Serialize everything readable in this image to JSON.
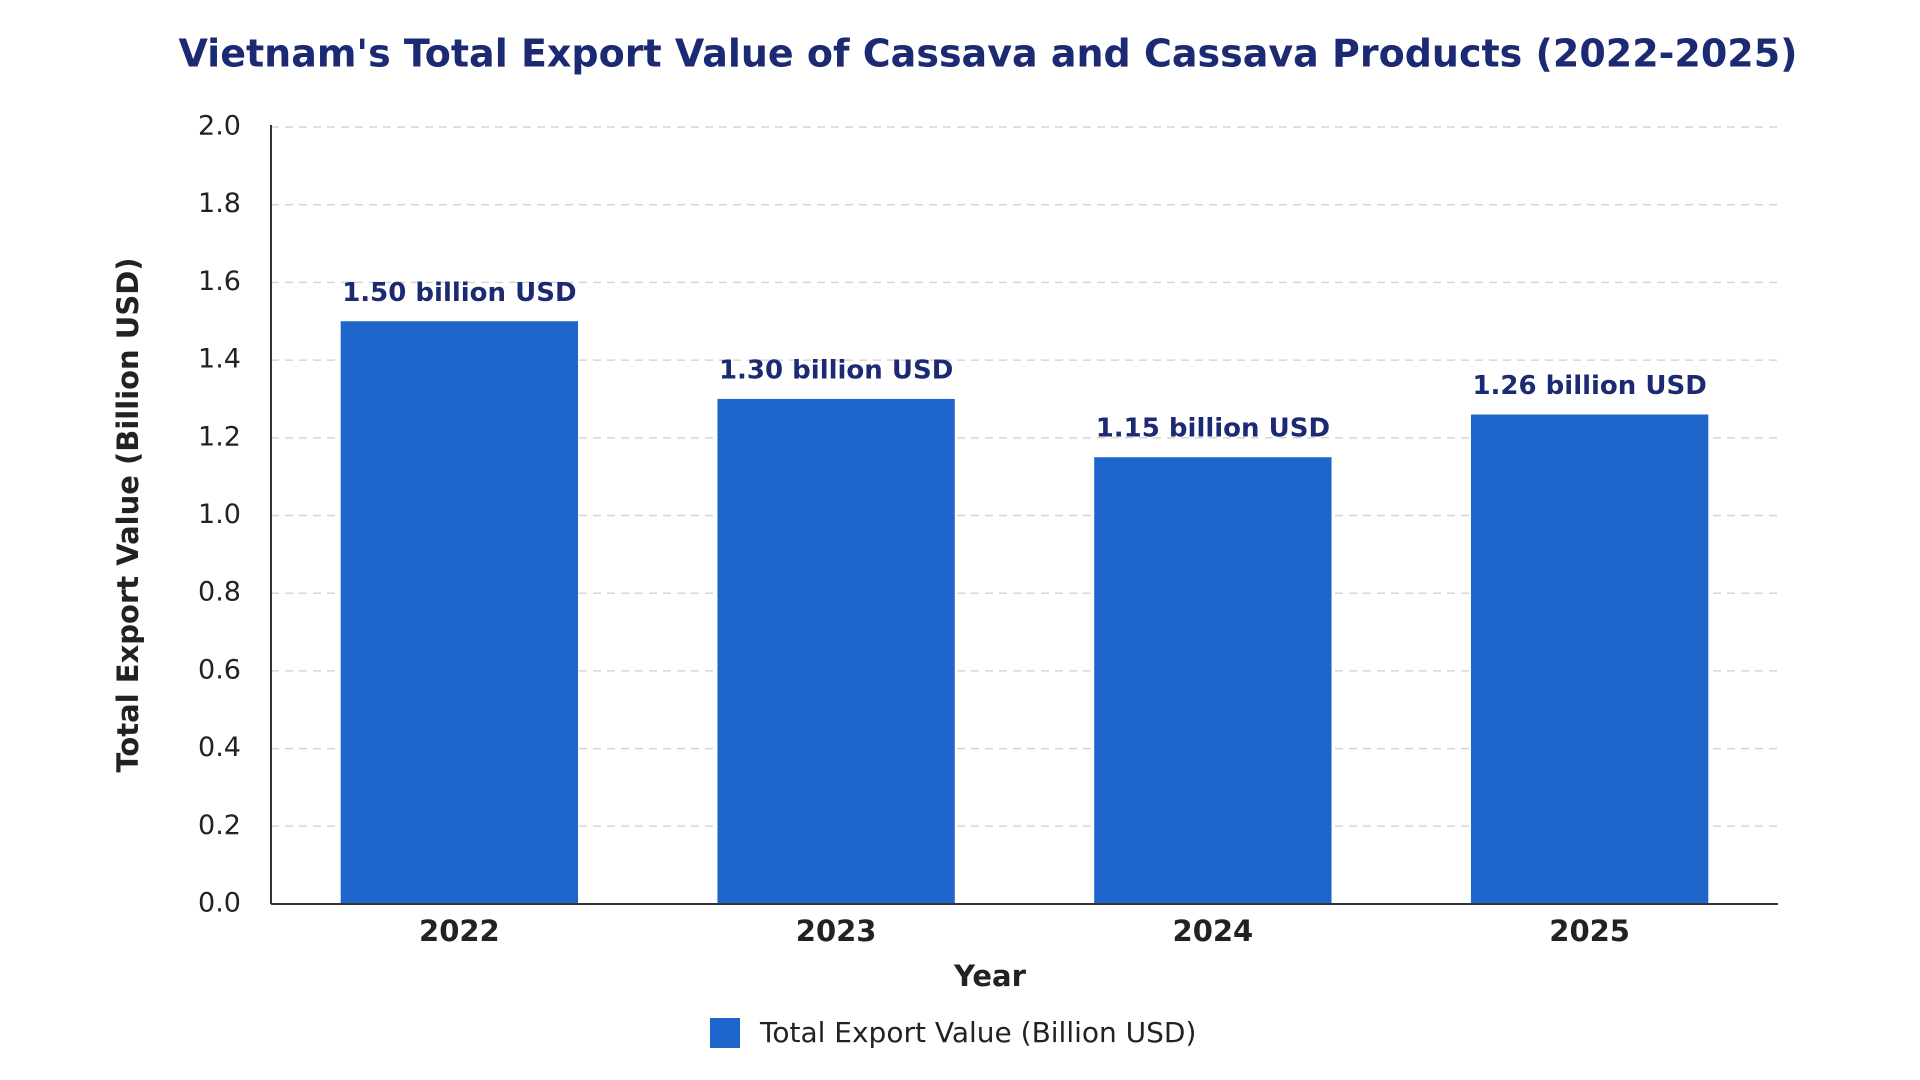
{
  "chart_data": {
    "type": "bar",
    "title": "Vietnam's Total Export Value of Cassava and Cassava Products (2022-2025)",
    "x_label": "Year",
    "y_label": "Total Export Value (Billion USD)",
    "categories": [
      "2022",
      "2023",
      "2024",
      "2025"
    ],
    "series": [
      {
        "name": "Total Export Value (Billion USD)",
        "color": "#1f66cc",
        "values": [
          1.5,
          1.3,
          1.15,
          1.26
        ],
        "value_labels": [
          "1.50 billion USD",
          "1.30 billion USD",
          "1.15 billion USD",
          "1.26 billion USD"
        ]
      }
    ],
    "ylim": [
      0,
      2
    ],
    "yticks": [
      {
        "value": 0,
        "label": "0.0"
      },
      0.2,
      0.4,
      0.6,
      0.8,
      {
        "value": 1,
        "label": "1.0"
      },
      1.2,
      1.4,
      1.6,
      1.8,
      {
        "value": 2,
        "label": "2.0"
      }
    ],
    "grid": true
  }
}
